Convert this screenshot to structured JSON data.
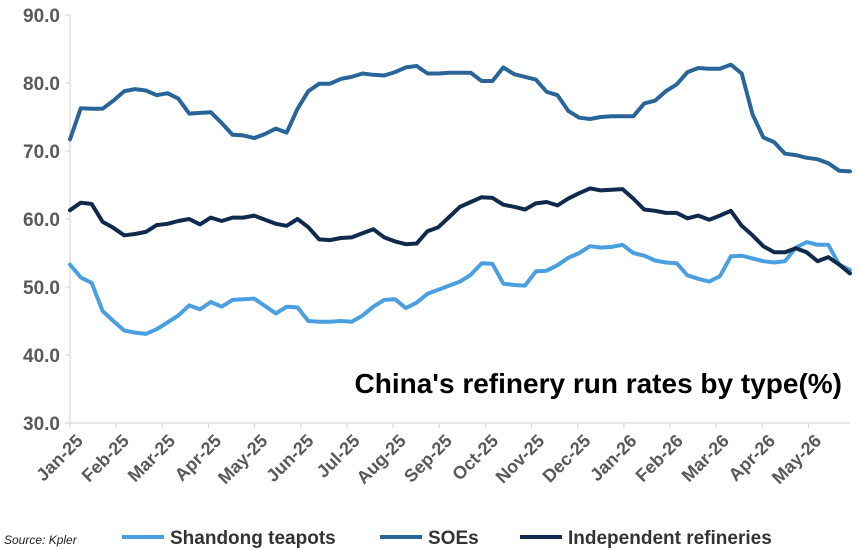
{
  "chart_data": {
    "type": "line",
    "title": "China's refinery run rates by type(%)",
    "source": "Source: Kpler",
    "ylim": [
      30,
      90
    ],
    "yticks": [
      "30.0",
      "40.0",
      "50.0",
      "60.0",
      "70.0",
      "80.0",
      "90.0"
    ],
    "x_ticks": [
      "Jan-25",
      "Feb-25",
      "Mar-25",
      "Apr-25",
      "May-25",
      "Jun-25",
      "Jul-25",
      "Aug-25",
      "Sep-25",
      "Oct-25",
      "Nov-25",
      "Dec-25",
      "Jan-26",
      "Feb-26",
      "Mar-26",
      "Apr-26",
      "May-26"
    ],
    "x_note": "weekly observations; x values are week numbers starting at Jan-25",
    "grid": false,
    "legend": "bottom",
    "series": [
      {
        "name": "Shandong teapots",
        "color": "#4a9fe0",
        "values": [
          53.3,
          51.4,
          50.6,
          46.5,
          45.0,
          43.6,
          43.3,
          43.1,
          43.8,
          44.8,
          45.8,
          47.3,
          46.7,
          47.8,
          47.1,
          48.1,
          48.2,
          48.3,
          47.2,
          46.1,
          47.1,
          47.0,
          45.0,
          44.9,
          44.9,
          45.0,
          44.9,
          45.8,
          47.1,
          48.1,
          48.2,
          46.9,
          47.7,
          49.0,
          49.6,
          50.2,
          50.8,
          51.8,
          53.5,
          53.4,
          50.5,
          50.3,
          50.2,
          52.3,
          52.4,
          53.2,
          54.3,
          55.0,
          56.0,
          55.8,
          55.9,
          56.2,
          55.0,
          54.6,
          53.9,
          53.6,
          53.5,
          51.7,
          51.2,
          50.8,
          51.6,
          54.5,
          54.6,
          54.2,
          53.8,
          53.6,
          53.8,
          55.8,
          56.6,
          56.2,
          56.2,
          53.3,
          52.5
        ]
      },
      {
        "name": "SOEs",
        "color": "#2a6599",
        "values": [
          71.7,
          76.3,
          76.2,
          76.2,
          77.4,
          78.8,
          79.1,
          78.9,
          78.2,
          78.5,
          77.7,
          75.5,
          75.6,
          75.7,
          74.1,
          72.4,
          72.3,
          71.9,
          72.5,
          73.3,
          72.7,
          76.2,
          78.8,
          79.9,
          79.9,
          80.6,
          80.9,
          81.4,
          81.2,
          81.1,
          81.6,
          82.3,
          82.5,
          81.4,
          81.4,
          81.5,
          81.5,
          81.5,
          80.3,
          80.3,
          82.3,
          81.3,
          80.9,
          80.5,
          78.7,
          78.2,
          75.9,
          74.9,
          74.7,
          75.0,
          75.1,
          75.1,
          75.1,
          77.0,
          77.4,
          78.8,
          79.8,
          81.6,
          82.2,
          82.1,
          82.1,
          82.7,
          81.4,
          75.4,
          72.0,
          71.3,
          69.6,
          69.4,
          69.0,
          68.8,
          68.2,
          67.1,
          67.0
        ]
      },
      {
        "name": "Independent refineries",
        "color": "#102a4e",
        "values": [
          61.3,
          62.4,
          62.2,
          59.6,
          58.7,
          57.6,
          57.8,
          58.1,
          59.1,
          59.3,
          59.7,
          60.0,
          59.2,
          60.2,
          59.7,
          60.2,
          60.2,
          60.5,
          59.9,
          59.3,
          59.0,
          60.0,
          58.8,
          57.0,
          56.9,
          57.2,
          57.3,
          57.9,
          58.5,
          57.3,
          56.7,
          56.3,
          56.4,
          58.2,
          58.8,
          60.3,
          61.8,
          62.5,
          63.2,
          63.1,
          62.1,
          61.8,
          61.4,
          62.3,
          62.5,
          62.0,
          63.0,
          63.8,
          64.5,
          64.2,
          64.3,
          64.4,
          63.0,
          61.4,
          61.2,
          60.9,
          60.9,
          60.1,
          60.5,
          59.9,
          60.5,
          61.2,
          59.0,
          57.6,
          56.0,
          55.1,
          55.1,
          55.7,
          55.1,
          53.8,
          54.4,
          53.3,
          52.0
        ]
      }
    ]
  }
}
